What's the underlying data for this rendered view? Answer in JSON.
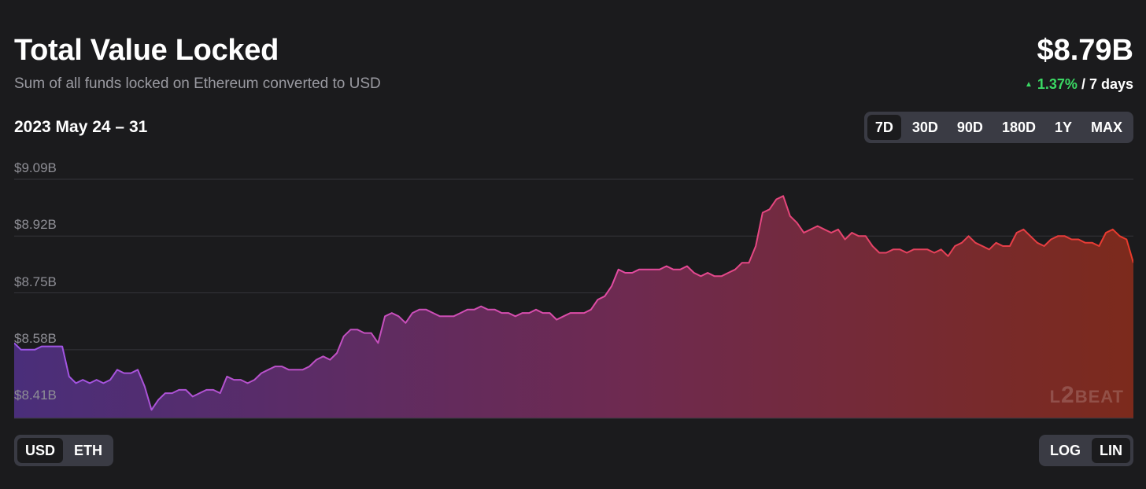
{
  "header": {
    "title": "Total Value Locked",
    "subtitle": "Sum of all funds locked on Ethereum converted to USD",
    "total_value": "$8.79B",
    "change_percent": "1.37%",
    "change_period": "/ 7 days",
    "change_color": "#3bd964"
  },
  "date_range": "2023 May 24 – 31",
  "period_tabs": [
    {
      "label": "7D",
      "active": true
    },
    {
      "label": "30D",
      "active": false
    },
    {
      "label": "90D",
      "active": false
    },
    {
      "label": "180D",
      "active": false
    },
    {
      "label": "1Y",
      "active": false
    },
    {
      "label": "MAX",
      "active": false
    }
  ],
  "currency_toggle": [
    {
      "label": "USD",
      "active": true
    },
    {
      "label": "ETH",
      "active": false
    }
  ],
  "scale_toggle": [
    {
      "label": "LOG",
      "active": false
    },
    {
      "label": "LIN",
      "active": true
    }
  ],
  "watermark": {
    "prefix": "L",
    "number": "2",
    "suffix": "BEAT"
  },
  "colors": {
    "background": "#1b1b1d",
    "gradient_start": "#9b55e8",
    "gradient_mid": "#e34ba0",
    "gradient_end": "#e83a2a",
    "grid": "#34343a"
  },
  "chart_data": {
    "type": "area",
    "title": "Total Value Locked",
    "ylabel": "",
    "xlabel": "",
    "y_tick_labels": [
      "$9.09B",
      "$8.92B",
      "$8.75B",
      "$8.58B",
      "$8.41B"
    ],
    "y_ticks": [
      9.09,
      8.92,
      8.75,
      8.58,
      8.41
    ],
    "ylim": [
      8.375,
      9.09
    ],
    "unit": "$B",
    "grid": true,
    "legend": "none",
    "x_range": "2023 May 24 – 31",
    "values": [
      8.6,
      8.58,
      8.58,
      8.58,
      8.59,
      8.59,
      8.59,
      8.59,
      8.5,
      8.48,
      8.49,
      8.48,
      8.49,
      8.48,
      8.49,
      8.52,
      8.51,
      8.51,
      8.52,
      8.47,
      8.4,
      8.43,
      8.45,
      8.45,
      8.46,
      8.46,
      8.44,
      8.45,
      8.46,
      8.46,
      8.45,
      8.5,
      8.49,
      8.49,
      8.48,
      8.49,
      8.51,
      8.52,
      8.53,
      8.53,
      8.52,
      8.52,
      8.52,
      8.53,
      8.55,
      8.56,
      8.55,
      8.57,
      8.62,
      8.64,
      8.64,
      8.63,
      8.63,
      8.6,
      8.68,
      8.69,
      8.68,
      8.66,
      8.69,
      8.7,
      8.7,
      8.69,
      8.68,
      8.68,
      8.68,
      8.69,
      8.7,
      8.7,
      8.71,
      8.7,
      8.7,
      8.69,
      8.69,
      8.68,
      8.69,
      8.69,
      8.7,
      8.69,
      8.69,
      8.67,
      8.68,
      8.69,
      8.69,
      8.69,
      8.7,
      8.73,
      8.74,
      8.77,
      8.82,
      8.81,
      8.81,
      8.82,
      8.82,
      8.82,
      8.82,
      8.83,
      8.82,
      8.82,
      8.83,
      8.81,
      8.8,
      8.81,
      8.8,
      8.8,
      8.81,
      8.82,
      8.84,
      8.84,
      8.89,
      8.99,
      9.0,
      9.03,
      9.04,
      8.98,
      8.96,
      8.93,
      8.94,
      8.95,
      8.94,
      8.93,
      8.94,
      8.91,
      8.93,
      8.92,
      8.92,
      8.89,
      8.87,
      8.87,
      8.88,
      8.88,
      8.87,
      8.88,
      8.88,
      8.88,
      8.87,
      8.88,
      8.86,
      8.89,
      8.9,
      8.92,
      8.9,
      8.89,
      8.88,
      8.9,
      8.89,
      8.89,
      8.93,
      8.94,
      8.92,
      8.9,
      8.89,
      8.91,
      8.92,
      8.92,
      8.91,
      8.91,
      8.9,
      8.9,
      8.89,
      8.93,
      8.94,
      8.92,
      8.91,
      8.84
    ]
  }
}
